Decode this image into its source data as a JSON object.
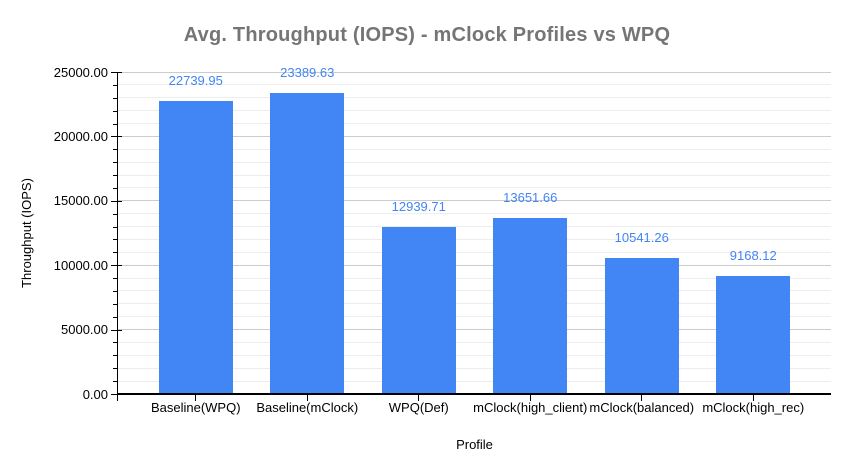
{
  "chart": {
    "background_color": "#ffffff",
    "bar_color": "#4285f4",
    "data_label_color": "#4285f4",
    "title_color": "#757575",
    "axis_text_color": "#000000",
    "axis_line_color": "#000000",
    "tick_color": "#000000",
    "major_gridline_color": "#cccccc",
    "minor_gridline_color": "#ededed"
  },
  "chart_data": {
    "type": "bar",
    "title": "Avg. Throughput (IOPS) - mClock Profiles vs WPQ",
    "xlabel": "Profile",
    "ylabel": "Throughput (IOPS)",
    "categories": [
      "Baseline(WPQ)",
      "Baseline(mClock)",
      "WPQ(Def)",
      "mClock(high_client)",
      "mClock(balanced)",
      "mClock(high_rec)"
    ],
    "values": [
      22739.95,
      23389.63,
      12939.71,
      13651.66,
      10541.26,
      9168.12
    ],
    "data_labels": [
      "22739.95",
      "23389.63",
      "12939.71",
      "13651.66",
      "10541.26",
      "9168.12"
    ],
    "ylim": [
      0,
      25000
    ],
    "y_major_unit": 5000,
    "y_minor_unit": 1000,
    "y_tick_labels": [
      "0.00",
      "5000.00",
      "10000.00",
      "15000.00",
      "20000.00",
      "25000.00"
    ],
    "grid": true,
    "legend": "none",
    "bar_orientation": "vertical"
  }
}
